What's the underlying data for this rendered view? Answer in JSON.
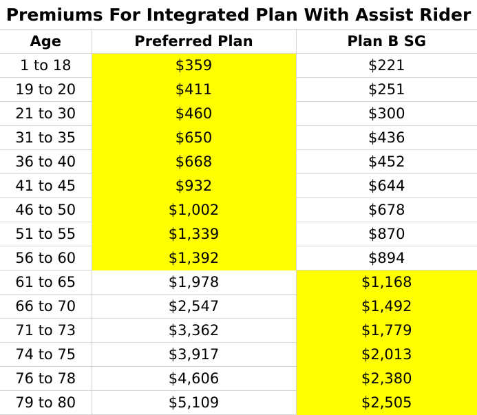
{
  "title": "Premiums For Integrated Plan With Assist Rider",
  "headers": {
    "age": "Age",
    "preferred": "Preferred Plan",
    "planb": "Plan B SG"
  },
  "highlight_color": "#ffff00",
  "rows": [
    {
      "age": "1 to 18",
      "preferred": "$359",
      "planb": "$221",
      "hl_pref": true,
      "hl_planb": false
    },
    {
      "age": "19 to 20",
      "preferred": "$411",
      "planb": "$251",
      "hl_pref": true,
      "hl_planb": false
    },
    {
      "age": "21 to 30",
      "preferred": "$460",
      "planb": "$300",
      "hl_pref": true,
      "hl_planb": false
    },
    {
      "age": "31 to 35",
      "preferred": "$650",
      "planb": "$436",
      "hl_pref": true,
      "hl_planb": false
    },
    {
      "age": "36 to 40",
      "preferred": "$668",
      "planb": "$452",
      "hl_pref": true,
      "hl_planb": false
    },
    {
      "age": "41 to 45",
      "preferred": "$932",
      "planb": "$644",
      "hl_pref": true,
      "hl_planb": false
    },
    {
      "age": "46 to 50",
      "preferred": "$1,002",
      "planb": "$678",
      "hl_pref": true,
      "hl_planb": false
    },
    {
      "age": "51 to 55",
      "preferred": "$1,339",
      "planb": "$870",
      "hl_pref": true,
      "hl_planb": false
    },
    {
      "age": "56 to 60",
      "preferred": "$1,392",
      "planb": "$894",
      "hl_pref": true,
      "hl_planb": false
    },
    {
      "age": "61 to 65",
      "preferred": "$1,978",
      "planb": "$1,168",
      "hl_pref": false,
      "hl_planb": true
    },
    {
      "age": "66 to 70",
      "preferred": "$2,547",
      "planb": "$1,492",
      "hl_pref": false,
      "hl_planb": true
    },
    {
      "age": "71 to 73",
      "preferred": "$3,362",
      "planb": "$1,779",
      "hl_pref": false,
      "hl_planb": true
    },
    {
      "age": "74 to 75",
      "preferred": "$3,917",
      "planb": "$2,013",
      "hl_pref": false,
      "hl_planb": true
    },
    {
      "age": "76 to 78",
      "preferred": "$4,606",
      "planb": "$2,380",
      "hl_pref": false,
      "hl_planb": true
    },
    {
      "age": "79 to 80",
      "preferred": "$5,109",
      "planb": "$2,505",
      "hl_pref": false,
      "hl_planb": true
    }
  ]
}
